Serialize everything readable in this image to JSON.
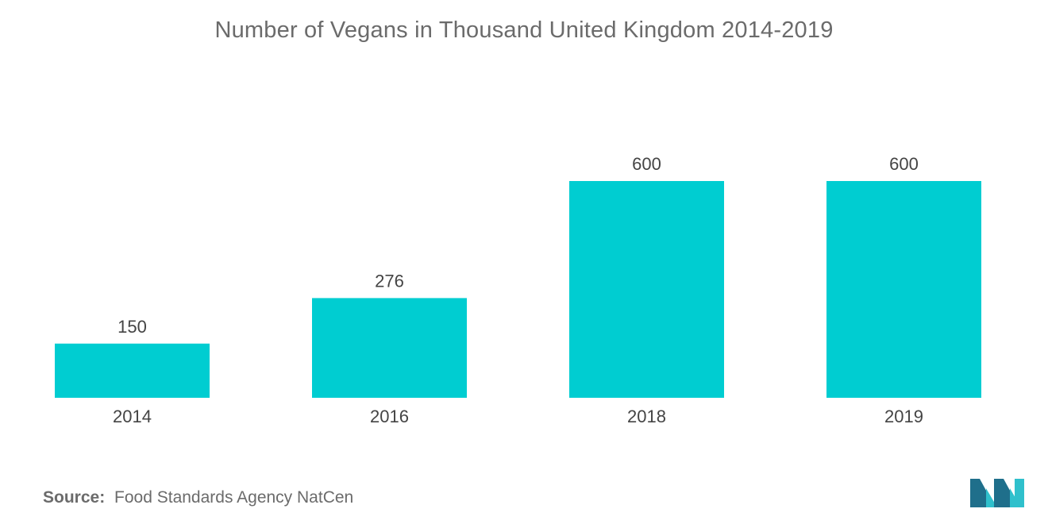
{
  "chart_data": {
    "type": "bar",
    "title": "Number of Vegans in Thousand United Kingdom 2014-2019",
    "categories": [
      "2014",
      "2016",
      "2018",
      "2019"
    ],
    "values": [
      150,
      276,
      600,
      600
    ],
    "value_labels": [
      "150",
      "276",
      "600",
      "600"
    ],
    "ylim": [
      0,
      600
    ],
    "grid": false,
    "bar_color": "#00cdd1"
  },
  "source": {
    "label": "Source:",
    "text": "Food Standards Agency NatCen"
  },
  "colors": {
    "title": "#6b6b6b",
    "axis_text": "#444444",
    "logo_dark": "#1f6f8b",
    "logo_light": "#2fc0cc"
  },
  "logo": {
    "icon": "mordor-intelligence-logo-icon"
  }
}
